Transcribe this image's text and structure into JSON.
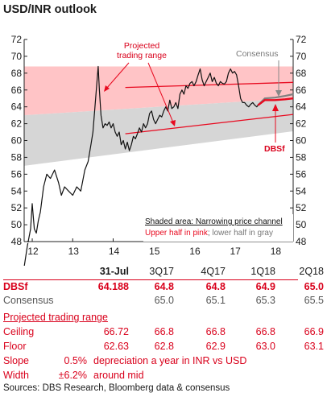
{
  "title": "USD/INR outlook",
  "chart_data": {
    "type": "line",
    "x_ticks": [
      "12",
      "13",
      "14",
      "15",
      "16",
      "17",
      "18"
    ],
    "ylim": [
      48,
      72
    ],
    "y_ticks": [
      48,
      50,
      52,
      54,
      56,
      58,
      60,
      62,
      64,
      66,
      68,
      70,
      72
    ],
    "series": [
      {
        "name": "USD/INR",
        "x": [
          2011.8,
          2011.88,
          2011.96,
          2012.0,
          2012.05,
          2012.1,
          2012.15,
          2012.2,
          2012.28,
          2012.36,
          2012.45,
          2012.55,
          2012.65,
          2012.72,
          2012.8,
          2012.9,
          2013.0,
          2013.1,
          2013.2,
          2013.3,
          2013.38,
          2013.45,
          2013.5,
          2013.55,
          2013.6,
          2013.63,
          2013.66,
          2013.7,
          2013.75,
          2013.8,
          2013.85,
          2013.9,
          2013.95,
          2014.0,
          2014.05,
          2014.1,
          2014.15,
          2014.2,
          2014.25,
          2014.3,
          2014.35,
          2014.4,
          2014.45,
          2014.5,
          2014.55,
          2014.6,
          2014.65,
          2014.7,
          2014.75,
          2014.8,
          2014.85,
          2014.9,
          2014.95,
          2015.0,
          2015.05,
          2015.1,
          2015.15,
          2015.2,
          2015.25,
          2015.3,
          2015.35,
          2015.4,
          2015.45,
          2015.5,
          2015.55,
          2015.6,
          2015.65,
          2015.7,
          2015.75,
          2015.8,
          2015.85,
          2015.9,
          2015.95,
          2016.0,
          2016.05,
          2016.1,
          2016.15,
          2016.2,
          2016.25,
          2016.3,
          2016.35,
          2016.4,
          2016.45,
          2016.5,
          2016.55,
          2016.6,
          2016.65,
          2016.7,
          2016.75,
          2016.8,
          2016.85,
          2016.9,
          2016.95,
          2017.0,
          2017.05,
          2017.1,
          2017.15,
          2017.2,
          2017.25,
          2017.3,
          2017.35,
          2017.4,
          2017.45,
          2017.5,
          2017.55,
          2017.58
        ],
        "values": [
          45.0,
          47.5,
          49.5,
          52.5,
          49.5,
          49.0,
          50.5,
          51.5,
          54.5,
          56.0,
          55.5,
          56.5,
          55.0,
          53.5,
          54.5,
          54.0,
          53.5,
          54.5,
          54.0,
          56.5,
          57.5,
          59.5,
          61.0,
          64.0,
          67.0,
          68.8,
          66.0,
          63.0,
          61.5,
          62.0,
          61.8,
          62.2,
          61.5,
          62.0,
          61.0,
          60.5,
          61.0,
          59.5,
          60.0,
          59.0,
          59.8,
          58.8,
          59.5,
          60.5,
          60.2,
          60.8,
          61.5,
          61.0,
          62.0,
          61.5,
          62.0,
          63.2,
          63.5,
          62.5,
          62.0,
          62.5,
          63.0,
          62.8,
          63.5,
          64.0,
          63.5,
          64.8,
          63.8,
          64.0,
          64.5,
          63.8,
          65.5,
          66.0,
          65.5,
          66.5,
          66.2,
          66.8,
          67.0,
          66.5,
          67.0,
          67.8,
          68.5,
          67.2,
          66.5,
          67.0,
          67.5,
          68.0,
          67.0,
          67.5,
          66.8,
          66.5,
          67.0,
          66.8,
          66.7,
          67.0,
          68.0,
          68.5,
          68.0,
          68.2,
          67.8,
          66.5,
          65.0,
          64.5,
          64.5,
          64.2,
          64.0,
          64.3,
          64.5,
          64.2,
          64.0,
          64.2
        ]
      },
      {
        "name": "DBSf",
        "x": [
          2017.58,
          2017.75,
          2018.0,
          2018.25,
          2018.45
        ],
        "values": [
          64.188,
          64.8,
          64.8,
          64.9,
          65.0
        ]
      },
      {
        "name": "Consensus",
        "x": [
          2017.58,
          2017.75,
          2018.0,
          2018.25,
          2018.45
        ],
        "values": [
          64.188,
          65.0,
          65.1,
          65.3,
          65.5
        ]
      }
    ],
    "channel": {
      "x_start": 2011.8,
      "x_end": 2018.45,
      "upper_start": 68.8,
      "upper_end": 68.8,
      "mid_start": 63.0,
      "mid_end": 65.0,
      "lower_start": 57.0,
      "lower_end": 61.1
    },
    "trading_range": {
      "ceiling": {
        "x": [
          2014.3,
          2018.45
        ],
        "values": [
          66.3,
          66.9
        ]
      },
      "floor": {
        "x": [
          2014.3,
          2018.45
        ],
        "values": [
          60.8,
          63.1
        ]
      }
    },
    "annotations": {
      "projected": [
        "Projected",
        "trading range"
      ],
      "consensus": "Consensus",
      "dbsf": "DBSf",
      "shaded_heading": "Shaded area: Narrowing price channel",
      "shaded_pink": "Upper half in pink",
      "shaded_sep": "; ",
      "shaded_gray": "lower half in gray"
    },
    "colors": {
      "pink": "#ffc4c6",
      "gray": "#d6d6d6",
      "red": "#e8091f",
      "consensus": "#808080",
      "line": "#111111"
    }
  },
  "table": {
    "headers": [
      "31-Jul",
      "3Q17",
      "4Q17",
      "1Q18",
      "2Q18"
    ],
    "rows": [
      {
        "label": "DBSf",
        "values": [
          "64.188",
          "64.8",
          "64.8",
          "64.9",
          "65.0"
        ]
      },
      {
        "label": "Consensus",
        "values": [
          "",
          "65.0",
          "65.1",
          "65.3",
          "65.5"
        ]
      }
    ]
  },
  "range": {
    "title": "Projected trading range",
    "ceiling": {
      "label": "Ceiling",
      "values": [
        "66.72",
        "66.8",
        "66.8",
        "66.8",
        "66.9"
      ]
    },
    "floor": {
      "label": "Floor",
      "values": [
        "62.63",
        "62.8",
        "62.9",
        "63.0",
        "63.1"
      ]
    },
    "slope": {
      "label": "Slope",
      "value": "0.5%",
      "text": "depreciation a year in INR vs USD"
    },
    "width": {
      "label": "Width",
      "value": "±6.2%",
      "text": "around mid"
    }
  },
  "source": "Sources: DBS Research, Bloomberg data & consensus"
}
